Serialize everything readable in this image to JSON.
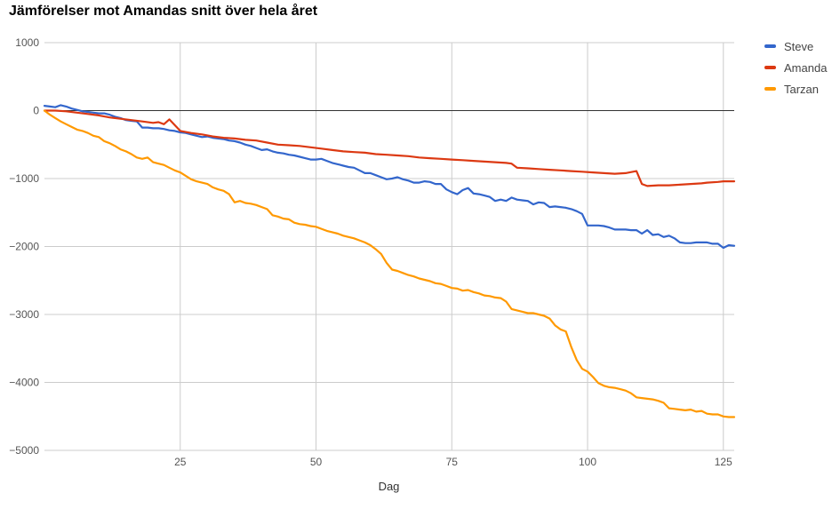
{
  "chart_data": {
    "type": "line",
    "title": "Jämförelser mot Amandas snitt över hela året",
    "xlabel": "Dag",
    "ylabel": "",
    "xlim": [
      0,
      127
    ],
    "ylim": [
      -5000,
      1000
    ],
    "x_ticks": [
      "25",
      "50",
      "75",
      "100",
      "125"
    ],
    "y_ticks": [
      "1000",
      "0",
      "−1000",
      "−2000",
      "−3000",
      "−4000",
      "−5000"
    ],
    "grid": true,
    "legend_position": "right",
    "series": [
      {
        "name": "Steve",
        "color": "#3366cc",
        "points": [
          [
            0,
            70
          ],
          [
            1,
            60
          ],
          [
            2,
            50
          ],
          [
            3,
            80
          ],
          [
            4,
            60
          ],
          [
            5,
            30
          ],
          [
            6,
            10
          ],
          [
            7,
            -10
          ],
          [
            8,
            -20
          ],
          [
            9,
            -30
          ],
          [
            10,
            -40
          ],
          [
            11,
            -40
          ],
          [
            12,
            -60
          ],
          [
            13,
            -90
          ],
          [
            14,
            -110
          ],
          [
            15,
            -140
          ],
          [
            16,
            -150
          ],
          [
            17,
            -160
          ],
          [
            18,
            -250
          ],
          [
            19,
            -250
          ],
          [
            20,
            -260
          ],
          [
            21,
            -260
          ],
          [
            22,
            -270
          ],
          [
            23,
            -290
          ],
          [
            24,
            -300
          ],
          [
            25,
            -320
          ],
          [
            26,
            -330
          ],
          [
            27,
            -350
          ],
          [
            28,
            -370
          ],
          [
            29,
            -390
          ],
          [
            30,
            -380
          ],
          [
            31,
            -400
          ],
          [
            32,
            -410
          ],
          [
            33,
            -420
          ],
          [
            34,
            -440
          ],
          [
            35,
            -450
          ],
          [
            36,
            -470
          ],
          [
            37,
            -500
          ],
          [
            38,
            -520
          ],
          [
            39,
            -550
          ],
          [
            40,
            -580
          ],
          [
            41,
            -570
          ],
          [
            42,
            -600
          ],
          [
            43,
            -620
          ],
          [
            44,
            -630
          ],
          [
            45,
            -650
          ],
          [
            46,
            -660
          ],
          [
            47,
            -680
          ],
          [
            48,
            -700
          ],
          [
            49,
            -720
          ],
          [
            50,
            -720
          ],
          [
            51,
            -710
          ],
          [
            52,
            -740
          ],
          [
            53,
            -770
          ],
          [
            54,
            -790
          ],
          [
            55,
            -810
          ],
          [
            56,
            -830
          ],
          [
            57,
            -840
          ],
          [
            58,
            -880
          ],
          [
            59,
            -920
          ],
          [
            60,
            -920
          ],
          [
            61,
            -950
          ],
          [
            62,
            -980
          ],
          [
            63,
            -1010
          ],
          [
            64,
            -1000
          ],
          [
            65,
            -980
          ],
          [
            66,
            -1010
          ],
          [
            67,
            -1030
          ],
          [
            68,
            -1060
          ],
          [
            69,
            -1060
          ],
          [
            70,
            -1040
          ],
          [
            71,
            -1050
          ],
          [
            72,
            -1080
          ],
          [
            73,
            -1080
          ],
          [
            74,
            -1160
          ],
          [
            75,
            -1200
          ],
          [
            76,
            -1230
          ],
          [
            77,
            -1170
          ],
          [
            78,
            -1140
          ],
          [
            79,
            -1220
          ],
          [
            80,
            -1230
          ],
          [
            81,
            -1250
          ],
          [
            82,
            -1270
          ],
          [
            83,
            -1330
          ],
          [
            84,
            -1310
          ],
          [
            85,
            -1330
          ],
          [
            86,
            -1280
          ],
          [
            87,
            -1310
          ],
          [
            88,
            -1320
          ],
          [
            89,
            -1330
          ],
          [
            90,
            -1380
          ],
          [
            91,
            -1350
          ],
          [
            92,
            -1360
          ],
          [
            93,
            -1420
          ],
          [
            94,
            -1410
          ],
          [
            95,
            -1420
          ],
          [
            96,
            -1430
          ],
          [
            97,
            -1450
          ],
          [
            98,
            -1480
          ],
          [
            99,
            -1520
          ],
          [
            100,
            -1690
          ],
          [
            101,
            -1690
          ],
          [
            102,
            -1690
          ],
          [
            103,
            -1700
          ],
          [
            104,
            -1720
          ],
          [
            105,
            -1750
          ],
          [
            106,
            -1750
          ],
          [
            107,
            -1750
          ],
          [
            108,
            -1760
          ],
          [
            109,
            -1760
          ],
          [
            110,
            -1810
          ],
          [
            111,
            -1760
          ],
          [
            112,
            -1830
          ],
          [
            113,
            -1820
          ],
          [
            114,
            -1860
          ],
          [
            115,
            -1840
          ],
          [
            116,
            -1880
          ],
          [
            117,
            -1940
          ],
          [
            118,
            -1950
          ],
          [
            119,
            -1950
          ],
          [
            120,
            -1940
          ],
          [
            121,
            -1940
          ],
          [
            122,
            -1940
          ],
          [
            123,
            -1960
          ],
          [
            124,
            -1960
          ],
          [
            125,
            -2020
          ],
          [
            126,
            -1980
          ],
          [
            127,
            -1990
          ]
        ]
      },
      {
        "name": "Amanda",
        "color": "#dc3912",
        "points": [
          [
            0,
            0
          ],
          [
            2,
            0
          ],
          [
            4,
            -10
          ],
          [
            6,
            -30
          ],
          [
            8,
            -50
          ],
          [
            10,
            -70
          ],
          [
            12,
            -100
          ],
          [
            14,
            -120
          ],
          [
            16,
            -140
          ],
          [
            18,
            -160
          ],
          [
            20,
            -180
          ],
          [
            21,
            -170
          ],
          [
            22,
            -200
          ],
          [
            23,
            -130
          ],
          [
            25,
            -300
          ],
          [
            27,
            -330
          ],
          [
            29,
            -350
          ],
          [
            31,
            -380
          ],
          [
            33,
            -400
          ],
          [
            35,
            -410
          ],
          [
            37,
            -430
          ],
          [
            39,
            -440
          ],
          [
            41,
            -470
          ],
          [
            43,
            -500
          ],
          [
            45,
            -510
          ],
          [
            47,
            -520
          ],
          [
            49,
            -540
          ],
          [
            51,
            -560
          ],
          [
            53,
            -580
          ],
          [
            55,
            -600
          ],
          [
            57,
            -610
          ],
          [
            59,
            -620
          ],
          [
            61,
            -640
          ],
          [
            63,
            -650
          ],
          [
            65,
            -660
          ],
          [
            67,
            -670
          ],
          [
            69,
            -690
          ],
          [
            71,
            -700
          ],
          [
            73,
            -710
          ],
          [
            75,
            -720
          ],
          [
            77,
            -730
          ],
          [
            79,
            -740
          ],
          [
            81,
            -750
          ],
          [
            83,
            -760
          ],
          [
            85,
            -770
          ],
          [
            86,
            -780
          ],
          [
            87,
            -840
          ],
          [
            89,
            -850
          ],
          [
            91,
            -860
          ],
          [
            93,
            -870
          ],
          [
            95,
            -880
          ],
          [
            97,
            -890
          ],
          [
            99,
            -900
          ],
          [
            101,
            -910
          ],
          [
            103,
            -920
          ],
          [
            105,
            -930
          ],
          [
            107,
            -920
          ],
          [
            109,
            -890
          ],
          [
            110,
            -1080
          ],
          [
            111,
            -1110
          ],
          [
            113,
            -1100
          ],
          [
            115,
            -1100
          ],
          [
            117,
            -1090
          ],
          [
            119,
            -1080
          ],
          [
            121,
            -1070
          ],
          [
            122,
            -1060
          ],
          [
            124,
            -1050
          ],
          [
            125,
            -1040
          ],
          [
            127,
            -1040
          ]
        ]
      },
      {
        "name": "Tarzan",
        "color": "#ff9900",
        "points": [
          [
            0,
            0
          ],
          [
            1,
            -60
          ],
          [
            2,
            -110
          ],
          [
            3,
            -160
          ],
          [
            4,
            -200
          ],
          [
            5,
            -240
          ],
          [
            6,
            -280
          ],
          [
            7,
            -300
          ],
          [
            8,
            -330
          ],
          [
            9,
            -370
          ],
          [
            10,
            -390
          ],
          [
            11,
            -450
          ],
          [
            12,
            -480
          ],
          [
            13,
            -520
          ],
          [
            14,
            -570
          ],
          [
            15,
            -600
          ],
          [
            16,
            -640
          ],
          [
            17,
            -690
          ],
          [
            18,
            -710
          ],
          [
            19,
            -690
          ],
          [
            20,
            -760
          ],
          [
            21,
            -780
          ],
          [
            22,
            -800
          ],
          [
            23,
            -840
          ],
          [
            24,
            -880
          ],
          [
            25,
            -910
          ],
          [
            26,
            -960
          ],
          [
            27,
            -1010
          ],
          [
            28,
            -1040
          ],
          [
            29,
            -1060
          ],
          [
            30,
            -1080
          ],
          [
            31,
            -1130
          ],
          [
            32,
            -1160
          ],
          [
            33,
            -1180
          ],
          [
            34,
            -1230
          ],
          [
            35,
            -1350
          ],
          [
            36,
            -1330
          ],
          [
            37,
            -1360
          ],
          [
            38,
            -1370
          ],
          [
            39,
            -1390
          ],
          [
            40,
            -1420
          ],
          [
            41,
            -1450
          ],
          [
            42,
            -1540
          ],
          [
            43,
            -1560
          ],
          [
            44,
            -1590
          ],
          [
            45,
            -1600
          ],
          [
            46,
            -1650
          ],
          [
            47,
            -1670
          ],
          [
            48,
            -1680
          ],
          [
            49,
            -1700
          ],
          [
            50,
            -1710
          ],
          [
            51,
            -1740
          ],
          [
            52,
            -1770
          ],
          [
            53,
            -1790
          ],
          [
            54,
            -1810
          ],
          [
            55,
            -1840
          ],
          [
            56,
            -1860
          ],
          [
            57,
            -1880
          ],
          [
            58,
            -1910
          ],
          [
            59,
            -1940
          ],
          [
            60,
            -1980
          ],
          [
            61,
            -2040
          ],
          [
            62,
            -2110
          ],
          [
            63,
            -2240
          ],
          [
            64,
            -2340
          ],
          [
            65,
            -2360
          ],
          [
            66,
            -2390
          ],
          [
            67,
            -2420
          ],
          [
            68,
            -2440
          ],
          [
            69,
            -2470
          ],
          [
            70,
            -2490
          ],
          [
            71,
            -2510
          ],
          [
            72,
            -2540
          ],
          [
            73,
            -2550
          ],
          [
            74,
            -2580
          ],
          [
            75,
            -2610
          ],
          [
            76,
            -2620
          ],
          [
            77,
            -2650
          ],
          [
            78,
            -2640
          ],
          [
            79,
            -2670
          ],
          [
            80,
            -2690
          ],
          [
            81,
            -2720
          ],
          [
            82,
            -2730
          ],
          [
            83,
            -2750
          ],
          [
            84,
            -2760
          ],
          [
            85,
            -2810
          ],
          [
            86,
            -2920
          ],
          [
            87,
            -2940
          ],
          [
            88,
            -2960
          ],
          [
            89,
            -2980
          ],
          [
            90,
            -2980
          ],
          [
            91,
            -3000
          ],
          [
            92,
            -3020
          ],
          [
            93,
            -3060
          ],
          [
            94,
            -3160
          ],
          [
            95,
            -3220
          ],
          [
            96,
            -3250
          ],
          [
            97,
            -3480
          ],
          [
            98,
            -3670
          ],
          [
            99,
            -3800
          ],
          [
            100,
            -3840
          ],
          [
            101,
            -3920
          ],
          [
            102,
            -4010
          ],
          [
            103,
            -4050
          ],
          [
            104,
            -4070
          ],
          [
            105,
            -4080
          ],
          [
            106,
            -4100
          ],
          [
            107,
            -4120
          ],
          [
            108,
            -4160
          ],
          [
            109,
            -4220
          ],
          [
            110,
            -4230
          ],
          [
            111,
            -4240
          ],
          [
            112,
            -4250
          ],
          [
            113,
            -4270
          ],
          [
            114,
            -4300
          ],
          [
            115,
            -4380
          ],
          [
            116,
            -4390
          ],
          [
            117,
            -4400
          ],
          [
            118,
            -4410
          ],
          [
            119,
            -4400
          ],
          [
            120,
            -4430
          ],
          [
            121,
            -4420
          ],
          [
            122,
            -4460
          ],
          [
            123,
            -4470
          ],
          [
            124,
            -4470
          ],
          [
            125,
            -4500
          ],
          [
            126,
            -4510
          ],
          [
            127,
            -4510
          ]
        ]
      }
    ]
  }
}
